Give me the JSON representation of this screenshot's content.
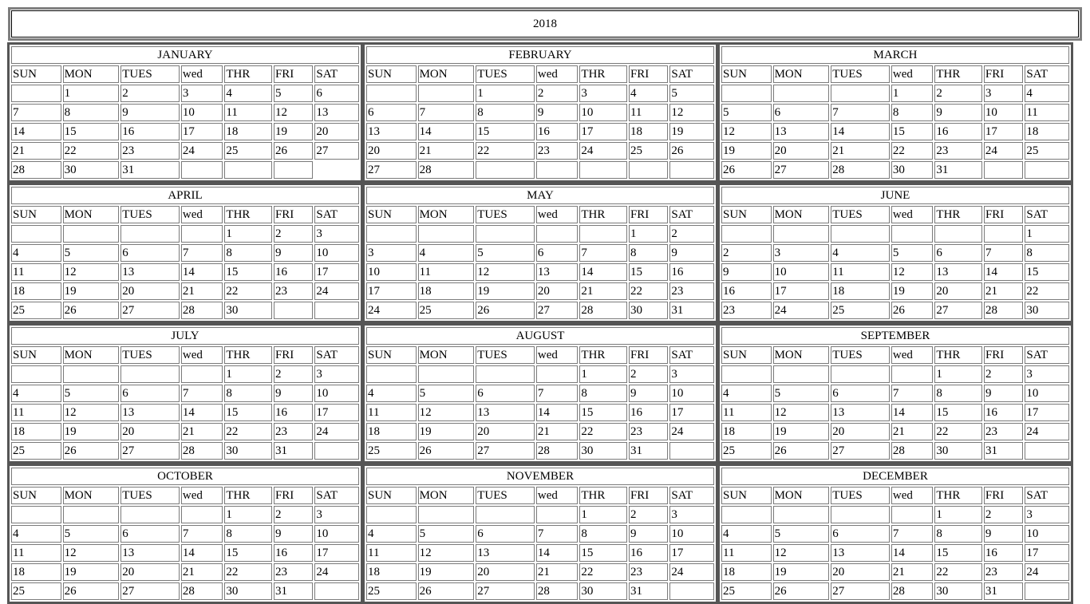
{
  "year": "2018",
  "weekdays": [
    "SUN",
    "MON",
    "TUES",
    "wed",
    "THR",
    "FRI",
    "SAT"
  ],
  "months": [
    {
      "name": "JANUARY",
      "weeks": [
        [
          "",
          "1",
          "2",
          "3",
          "4",
          "5",
          "6"
        ],
        [
          "7",
          "8",
          "9",
          "10",
          "11",
          "12",
          "13"
        ],
        [
          "14",
          "15",
          "16",
          "17",
          "18",
          "19",
          "20"
        ],
        [
          "21",
          "22",
          "23",
          "24",
          "25",
          "26",
          "27"
        ],
        [
          "28",
          "30",
          "31",
          "",
          "",
          "",
          null
        ]
      ]
    },
    {
      "name": "FEBRUARY",
      "weeks": [
        [
          "",
          "",
          "1",
          "2",
          "3",
          "4",
          "5"
        ],
        [
          "6",
          "7",
          "8",
          "9",
          "10",
          "11",
          "12"
        ],
        [
          "13",
          "14",
          "15",
          "16",
          "17",
          "18",
          "19"
        ],
        [
          "20",
          "21",
          "22",
          "23",
          "24",
          "25",
          "26"
        ],
        [
          "27",
          "28",
          "",
          "",
          "",
          "",
          ""
        ]
      ]
    },
    {
      "name": "MARCH",
      "weeks": [
        [
          "",
          "",
          "",
          "1",
          "2",
          "3",
          "4"
        ],
        [
          "5",
          "6",
          "7",
          "8",
          "9",
          "10",
          "11"
        ],
        [
          "12",
          "13",
          "14",
          "15",
          "16",
          "17",
          "18"
        ],
        [
          "19",
          "20",
          "21",
          "22",
          "23",
          "24",
          "25"
        ],
        [
          "26",
          "27",
          "28",
          "30",
          "31",
          "",
          ""
        ]
      ]
    },
    {
      "name": "APRIL",
      "weeks": [
        [
          "",
          "",
          "",
          "",
          "1",
          "2",
          "3"
        ],
        [
          "4",
          "5",
          "6",
          "7",
          "8",
          "9",
          "10"
        ],
        [
          "11",
          "12",
          "13",
          "14",
          "15",
          "16",
          "17"
        ],
        [
          "18",
          "19",
          "20",
          "21",
          "22",
          "23",
          "24"
        ],
        [
          "25",
          "26",
          "27",
          "28",
          "30",
          "",
          ""
        ]
      ]
    },
    {
      "name": "MAY",
      "weeks": [
        [
          "",
          "",
          "",
          "",
          "",
          "1",
          "2"
        ],
        [
          "3",
          "4",
          "5",
          "6",
          "7",
          "8",
          "9"
        ],
        [
          "10",
          "11",
          "12",
          "13",
          "14",
          "15",
          "16"
        ],
        [
          "17",
          "18",
          "19",
          "20",
          "21",
          "22",
          "23"
        ],
        [
          "24",
          "25",
          "26",
          "27",
          "28",
          "30",
          "31"
        ]
      ]
    },
    {
      "name": "JUNE",
      "weeks": [
        [
          "",
          "",
          "",
          "",
          "",
          "",
          "1"
        ],
        [
          "2",
          "3",
          "4",
          "5",
          "6",
          "7",
          "8"
        ],
        [
          "9",
          "10",
          "11",
          "12",
          "13",
          "14",
          "15"
        ],
        [
          "16",
          "17",
          "18",
          "19",
          "20",
          "21",
          "22"
        ],
        [
          "23",
          "24",
          "25",
          "26",
          "27",
          "28",
          "30"
        ]
      ]
    },
    {
      "name": "JULY",
      "weeks": [
        [
          "",
          "",
          "",
          "",
          "1",
          "2",
          "3"
        ],
        [
          "4",
          "5",
          "6",
          "7",
          "8",
          "9",
          "10"
        ],
        [
          "11",
          "12",
          "13",
          "14",
          "15",
          "16",
          "17"
        ],
        [
          "18",
          "19",
          "20",
          "21",
          "22",
          "23",
          "24"
        ],
        [
          "25",
          "26",
          "27",
          "28",
          "30",
          "31",
          ""
        ]
      ]
    },
    {
      "name": "AUGUST",
      "weeks": [
        [
          "",
          "",
          "",
          "",
          "1",
          "2",
          "3"
        ],
        [
          "4",
          "5",
          "6",
          "7",
          "8",
          "9",
          "10"
        ],
        [
          "11",
          "12",
          "13",
          "14",
          "15",
          "16",
          "17"
        ],
        [
          "18",
          "19",
          "20",
          "21",
          "22",
          "23",
          "24"
        ],
        [
          "25",
          "26",
          "27",
          "28",
          "30",
          "31",
          ""
        ]
      ]
    },
    {
      "name": "SEPTEMBER",
      "weeks": [
        [
          "",
          "",
          "",
          "",
          "1",
          "2",
          "3"
        ],
        [
          "4",
          "5",
          "6",
          "7",
          "8",
          "9",
          "10"
        ],
        [
          "11",
          "12",
          "13",
          "14",
          "15",
          "16",
          "17"
        ],
        [
          "18",
          "19",
          "20",
          "21",
          "22",
          "23",
          "24"
        ],
        [
          "25",
          "26",
          "27",
          "28",
          "30",
          "31",
          ""
        ]
      ]
    },
    {
      "name": "OCTOBER",
      "weeks": [
        [
          "",
          "",
          "",
          "",
          "1",
          "2",
          "3"
        ],
        [
          "4",
          "5",
          "6",
          "7",
          "8",
          "9",
          "10"
        ],
        [
          "11",
          "12",
          "13",
          "14",
          "15",
          "16",
          "17"
        ],
        [
          "18",
          "19",
          "20",
          "21",
          "22",
          "23",
          "24"
        ],
        [
          "25",
          "26",
          "27",
          "28",
          "30",
          "31",
          ""
        ]
      ]
    },
    {
      "name": "NOVEMBER",
      "weeks": [
        [
          "",
          "",
          "",
          "",
          "1",
          "2",
          "3"
        ],
        [
          "4",
          "5",
          "6",
          "7",
          "8",
          "9",
          "10"
        ],
        [
          "11",
          "12",
          "13",
          "14",
          "15",
          "16",
          "17"
        ],
        [
          "18",
          "19",
          "20",
          "21",
          "22",
          "23",
          "24"
        ],
        [
          "25",
          "26",
          "27",
          "28",
          "30",
          "31",
          ""
        ]
      ]
    },
    {
      "name": "DECEMBER",
      "weeks": [
        [
          "",
          "",
          "",
          "",
          "1",
          "2",
          "3"
        ],
        [
          "4",
          "5",
          "6",
          "7",
          "8",
          "9",
          "10"
        ],
        [
          "11",
          "12",
          "13",
          "14",
          "15",
          "16",
          "17"
        ],
        [
          "18",
          "19",
          "20",
          "21",
          "22",
          "23",
          "24"
        ],
        [
          "25",
          "26",
          "27",
          "28",
          "30",
          "31",
          ""
        ]
      ]
    }
  ]
}
